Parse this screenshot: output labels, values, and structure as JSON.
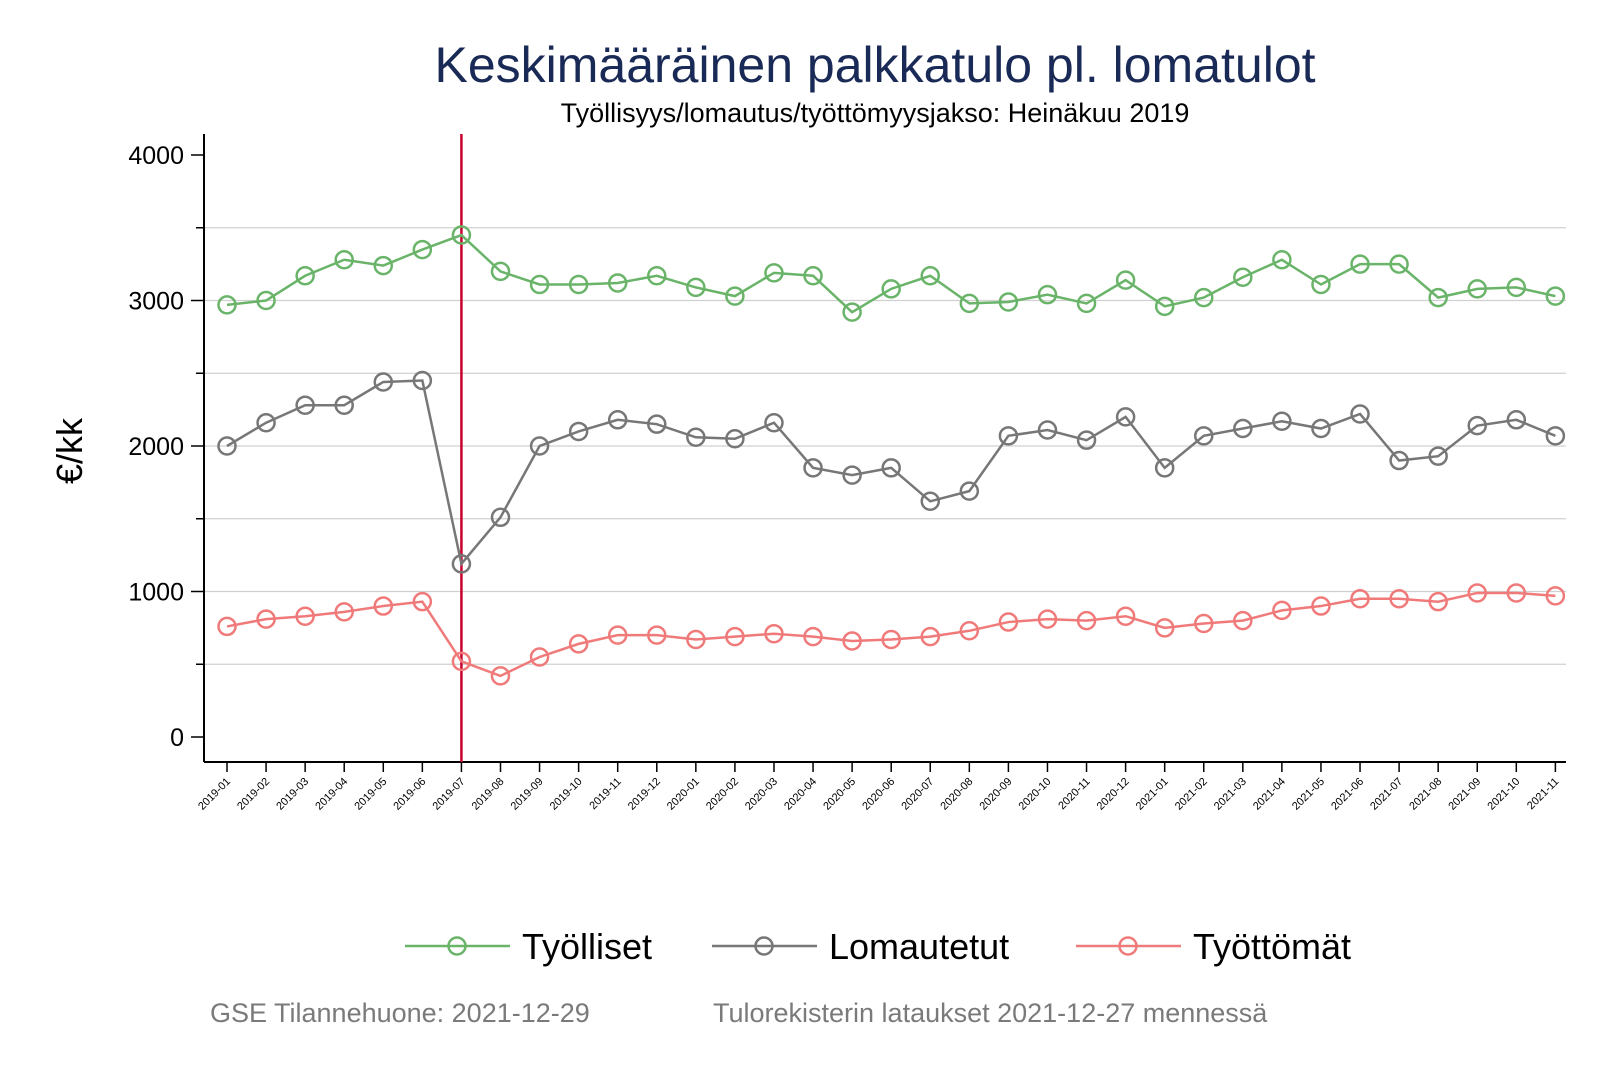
{
  "chart_data": {
    "type": "line",
    "title": "Keskimääräinen palkkatulo pl. lomatulot",
    "subtitle": "Työllisyys/lomautus/työttömyysjakso: Heinäkuu 2019",
    "xlabel": "",
    "ylabel": "€/kk",
    "ylim": [
      -150,
      4150
    ],
    "yticks": [
      0,
      1000,
      2000,
      3000,
      4000
    ],
    "grid": true,
    "legend_position": "bottom",
    "reference_line": {
      "x": "2019-07",
      "color": "#c8002d"
    },
    "categories": [
      "2019-01",
      "2019-02",
      "2019-03",
      "2019-04",
      "2019-05",
      "2019-06",
      "2019-07",
      "2019-08",
      "2019-09",
      "2019-10",
      "2019-11",
      "2019-12",
      "2020-01",
      "2020-02",
      "2020-03",
      "2020-04",
      "2020-05",
      "2020-06",
      "2020-07",
      "2020-08",
      "2020-09",
      "2020-10",
      "2020-11",
      "2020-12",
      "2021-01",
      "2021-02",
      "2021-03",
      "2021-04",
      "2021-05",
      "2021-06",
      "2021-07",
      "2021-08",
      "2021-09",
      "2021-10",
      "2021-11"
    ],
    "series": [
      {
        "name": "Työlliset",
        "color": "#6ab46a",
        "values": [
          2970,
          3000,
          3170,
          3280,
          3240,
          3350,
          3450,
          3200,
          3110,
          3110,
          3120,
          3170,
          3090,
          3030,
          3190,
          3170,
          2920,
          3080,
          3170,
          2980,
          2990,
          3040,
          2980,
          3140,
          2960,
          3020,
          3160,
          3280,
          3110,
          3250,
          3250,
          3020,
          3080,
          3090,
          3030
        ]
      },
      {
        "name": "Lomautetut",
        "color": "#777777",
        "values": [
          2000,
          2160,
          2280,
          2280,
          2440,
          2450,
          1190,
          1510,
          2000,
          2100,
          2180,
          2150,
          2060,
          2050,
          2160,
          1850,
          1800,
          1850,
          1620,
          1690,
          2070,
          2110,
          2040,
          2200,
          1850,
          2070,
          2120,
          2170,
          2120,
          2220,
          1900,
          1930,
          2140,
          2180,
          2070
        ]
      },
      {
        "name": "Työttömät",
        "color": "#f07a7a",
        "values": [
          760,
          810,
          830,
          860,
          900,
          930,
          520,
          420,
          550,
          640,
          700,
          700,
          670,
          690,
          710,
          690,
          660,
          670,
          690,
          730,
          790,
          810,
          800,
          830,
          750,
          780,
          800,
          870,
          900,
          950,
          950,
          930,
          990,
          990,
          970
        ]
      }
    ]
  },
  "footer": {
    "left": "GSE Tilannehuone: 2021-12-29",
    "right": "Tulorekisterin lataukset 2021-12-27 mennessä"
  }
}
